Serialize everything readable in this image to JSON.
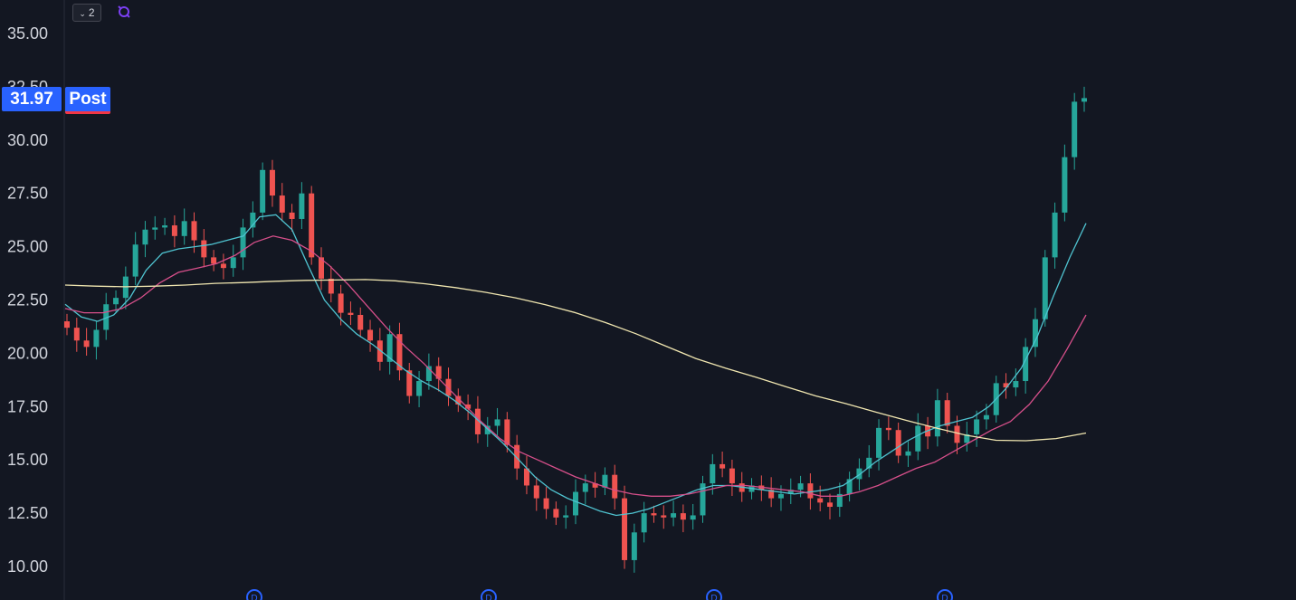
{
  "toolbar": {
    "collapse_count": "2",
    "collapse_icon": "chevron-down-icon",
    "sync_icon": "sync-icon",
    "sync_color": "#7b3ff2"
  },
  "price_badge": {
    "value": "31.97",
    "session": "Post"
  },
  "colors": {
    "background": "#131722",
    "up": "#26a69a",
    "down": "#ef5350",
    "ma_fast": "#4fc3d0",
    "ma_mid": "#d64f8a",
    "ma_slow": "#f0e6b0",
    "badge": "#2962ff",
    "dividend_marker": "#2962ff"
  },
  "chart_data": {
    "type": "candlestick",
    "y_ticks": [
      "35.00",
      "32.50",
      "30.00",
      "27.50",
      "25.00",
      "22.50",
      "20.00",
      "17.50",
      "15.00",
      "12.50",
      "10.00"
    ],
    "ylim": [
      8.5,
      36.5
    ],
    "close_series": [
      21.2,
      20.6,
      20.3,
      21.1,
      22.3,
      22.6,
      23.6,
      25.1,
      25.8,
      25.9,
      26.0,
      25.5,
      26.2,
      25.3,
      24.5,
      24.2,
      24.0,
      24.5,
      25.9,
      26.6,
      28.6,
      27.4,
      26.6,
      26.3,
      27.5,
      24.5,
      23.5,
      22.8,
      21.9,
      21.8,
      21.1,
      20.6,
      19.6,
      20.9,
      19.2,
      18.0,
      18.7,
      19.4,
      18.8,
      18.0,
      17.6,
      17.4,
      16.2,
      16.6,
      16.9,
      15.7,
      14.6,
      13.8,
      13.2,
      12.7,
      12.3,
      12.4,
      13.5,
      13.9,
      13.7,
      14.3,
      13.2,
      10.3,
      11.6,
      12.5,
      12.4,
      12.3,
      12.5,
      12.2,
      12.4,
      13.9,
      14.8,
      14.6,
      13.9,
      13.5,
      13.8,
      13.6,
      13.2,
      13.4,
      13.6,
      13.9,
      13.2,
      13.0,
      12.8,
      13.4,
      14.1,
      14.6,
      15.1,
      16.5,
      16.4,
      15.2,
      15.4,
      16.6,
      16.1,
      17.8,
      16.6,
      15.8,
      16.2,
      16.9,
      17.1,
      18.6,
      18.4,
      18.7,
      20.3,
      21.6,
      24.5,
      26.6,
      29.2,
      31.8,
      31.97
    ],
    "moving_averages": [
      {
        "period": "fast",
        "color_key": "ma_fast",
        "values": [
          22.3,
          21.7,
          21.5,
          21.8,
          22.6,
          23.9,
          24.7,
          24.9,
          25.0,
          25.1,
          25.3,
          25.5,
          26.4,
          26.5,
          25.8,
          24.1,
          22.5,
          21.6,
          20.9,
          20.4,
          19.8,
          19.2,
          18.7,
          18.3,
          17.8,
          17.2,
          16.5,
          15.8,
          15.0,
          14.2,
          13.6,
          13.2,
          12.9,
          12.6,
          12.4,
          12.5,
          12.7,
          13.0,
          13.3,
          13.6,
          13.8,
          13.8,
          13.7,
          13.6,
          13.5,
          13.4,
          13.5,
          13.6,
          13.8,
          14.3,
          14.9,
          15.4,
          15.9,
          16.3,
          16.6,
          16.8,
          17.0,
          17.5,
          18.3,
          19.3,
          20.8,
          22.7,
          24.5,
          26.1
        ]
      },
      {
        "period": "mid",
        "color_key": "ma_mid",
        "values": [
          22.1,
          21.9,
          21.9,
          22.1,
          22.6,
          23.3,
          23.8,
          24.0,
          24.2,
          24.6,
          25.2,
          25.5,
          25.3,
          24.8,
          24.1,
          23.2,
          22.2,
          21.2,
          20.3,
          19.5,
          18.6,
          17.7,
          16.8,
          16.0,
          15.4,
          15.0,
          14.6,
          14.2,
          13.9,
          13.6,
          13.4,
          13.3,
          13.3,
          13.4,
          13.6,
          13.8,
          13.8,
          13.7,
          13.6,
          13.5,
          13.3,
          13.3,
          13.5,
          13.8,
          14.2,
          14.6,
          14.9,
          15.4,
          15.9,
          16.4,
          16.8,
          17.6,
          18.7,
          20.2,
          21.8
        ]
      },
      {
        "period": "slow",
        "color_key": "ma_slow",
        "values": [
          23.2,
          23.15,
          23.12,
          23.15,
          23.2,
          23.28,
          23.32,
          23.38,
          23.42,
          23.44,
          23.46,
          23.4,
          23.26,
          23.08,
          22.86,
          22.6,
          22.28,
          21.9,
          21.44,
          20.92,
          20.34,
          19.76,
          19.3,
          18.88,
          18.44,
          18.0,
          17.64,
          17.24,
          16.86,
          16.5,
          16.16,
          15.92,
          15.9,
          16.0,
          16.26
        ]
      }
    ],
    "dividend_markers": 4
  }
}
